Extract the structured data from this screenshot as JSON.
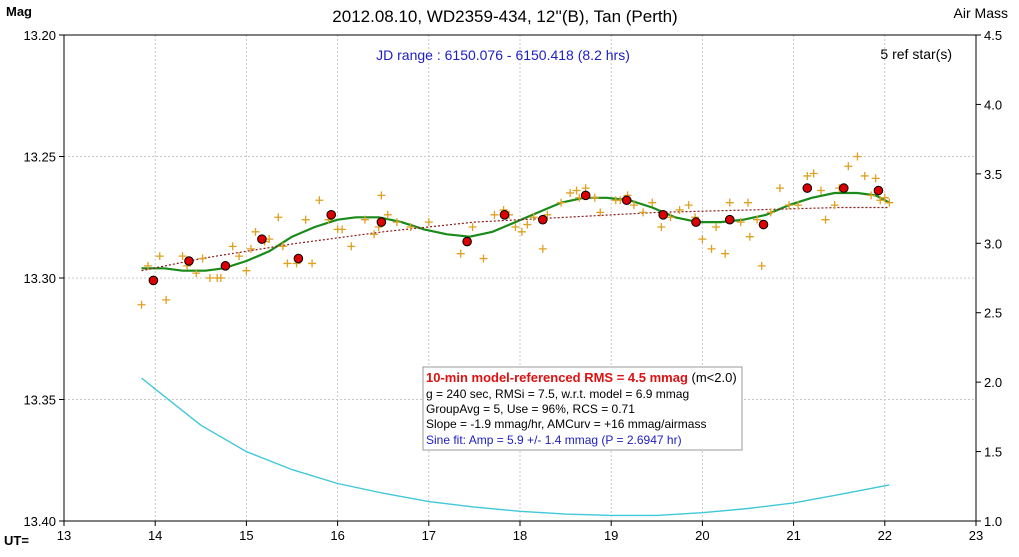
{
  "chart_data": {
    "type": "scatter",
    "title": "2012.08.10, WD2359-434, 12''(B), Tan (Perth)",
    "ylabel": "Mag",
    "y2label": "Air Mass",
    "xlabel": "UT=",
    "xlim": [
      13,
      23
    ],
    "ylim": [
      13.2,
      13.4
    ],
    "y_inverted": true,
    "y2lim": [
      1.0,
      4.5
    ],
    "x_ticks": [
      "13",
      "14",
      "15",
      "16",
      "17",
      "18",
      "19",
      "20",
      "21",
      "22",
      "23"
    ],
    "y_ticks": [
      "13.20",
      "13.25",
      "13.30",
      "13.35",
      "13.40"
    ],
    "y2_ticks": [
      "1.0",
      "1.5",
      "2.0",
      "2.5",
      "3.0",
      "3.5",
      "4.0",
      "4.5"
    ],
    "grid": true,
    "jd_range_label": "JD range : 6150.076 - 6150.418 (8.2 hrs)",
    "ref_stars_label": "5 ref star(s)",
    "stats_box": {
      "line1_red": "10-min model-referenced RMS = 4.5 mmag",
      "line1_tail": " (m<2.0)",
      "line2": "g = 240 sec, RMSi = 7.5, w.r.t. model = 6.9 mmag",
      "line3": "GroupAvg  = 5, Use = 96%, RCS = 0.71",
      "line4": "Slope = -1.9  mmag/hr,  AMCurv  = +16 mmag/airmass",
      "line5_blue": "Sine fit: Amp = 5.9 +/- 1.4 mmag (P = 2.6947  hr)"
    },
    "series": [
      {
        "kind": "individual",
        "marker": "plus",
        "color": "#E0A020",
        "points": [
          [
            13.85,
            13.311
          ],
          [
            13.92,
            13.295
          ],
          [
            14.05,
            13.291
          ],
          [
            14.12,
            13.309
          ],
          [
            14.3,
            13.291
          ],
          [
            14.35,
            13.295
          ],
          [
            14.45,
            13.298
          ],
          [
            14.52,
            13.292
          ],
          [
            14.6,
            13.3
          ],
          [
            14.68,
            13.3
          ],
          [
            14.72,
            13.3
          ],
          [
            14.78,
            13.295
          ],
          [
            14.85,
            13.287
          ],
          [
            14.92,
            13.291
          ],
          [
            15.0,
            13.297
          ],
          [
            15.05,
            13.288
          ],
          [
            15.1,
            13.281
          ],
          [
            15.2,
            13.285
          ],
          [
            15.25,
            13.284
          ],
          [
            15.35,
            13.275
          ],
          [
            15.4,
            13.287
          ],
          [
            15.45,
            13.294
          ],
          [
            15.55,
            13.294
          ],
          [
            15.65,
            13.276
          ],
          [
            15.72,
            13.294
          ],
          [
            15.8,
            13.268
          ],
          [
            15.9,
            13.276
          ],
          [
            16.0,
            13.28
          ],
          [
            16.05,
            13.28
          ],
          [
            16.15,
            13.287
          ],
          [
            16.3,
            13.276
          ],
          [
            16.4,
            13.282
          ],
          [
            16.45,
            13.279
          ],
          [
            16.48,
            13.266
          ],
          [
            16.55,
            13.274
          ],
          [
            16.65,
            13.277
          ],
          [
            16.8,
            13.279
          ],
          [
            17.0,
            13.277
          ],
          [
            17.35,
            13.29
          ],
          [
            17.48,
            13.279
          ],
          [
            17.6,
            13.292
          ],
          [
            17.72,
            13.274
          ],
          [
            17.82,
            13.272
          ],
          [
            17.88,
            13.274
          ],
          [
            17.95,
            13.279
          ],
          [
            18.02,
            13.281
          ],
          [
            18.08,
            13.278
          ],
          [
            18.15,
            13.275
          ],
          [
            18.25,
            13.288
          ],
          [
            18.3,
            13.274
          ],
          [
            18.45,
            13.269
          ],
          [
            18.55,
            13.265
          ],
          [
            18.62,
            13.264
          ],
          [
            18.65,
            13.267
          ],
          [
            18.72,
            13.263
          ],
          [
            18.82,
            13.267
          ],
          [
            18.88,
            13.273
          ],
          [
            19.05,
            13.268
          ],
          [
            19.1,
            13.268
          ],
          [
            19.18,
            13.266
          ],
          [
            19.25,
            13.27
          ],
          [
            19.35,
            13.273
          ],
          [
            19.45,
            13.269
          ],
          [
            19.55,
            13.279
          ],
          [
            19.65,
            13.275
          ],
          [
            19.75,
            13.272
          ],
          [
            19.85,
            13.27
          ],
          [
            19.92,
            13.275
          ],
          [
            20.0,
            13.284
          ],
          [
            20.1,
            13.288
          ],
          [
            20.15,
            13.279
          ],
          [
            20.25,
            13.29
          ],
          [
            20.3,
            13.269
          ],
          [
            20.42,
            13.277
          ],
          [
            20.5,
            13.269
          ],
          [
            20.52,
            13.283
          ],
          [
            20.6,
            13.276
          ],
          [
            20.65,
            13.295
          ],
          [
            20.75,
            13.273
          ],
          [
            20.85,
            13.263
          ],
          [
            20.95,
            13.27
          ],
          [
            21.05,
            13.27
          ],
          [
            21.15,
            13.258
          ],
          [
            21.22,
            13.257
          ],
          [
            21.3,
            13.264
          ],
          [
            21.35,
            13.276
          ],
          [
            21.45,
            13.27
          ],
          [
            21.5,
            13.263
          ],
          [
            21.6,
            13.254
          ],
          [
            21.7,
            13.25
          ],
          [
            21.78,
            13.258
          ],
          [
            21.85,
            13.266
          ],
          [
            21.9,
            13.259
          ],
          [
            21.95,
            13.268
          ],
          [
            22.0,
            13.267
          ],
          [
            22.05,
            13.269
          ]
        ]
      },
      {
        "kind": "group_average",
        "marker": "circle",
        "color": "#DD0000",
        "points": [
          [
            13.98,
            13.301
          ],
          [
            14.37,
            13.293
          ],
          [
            14.77,
            13.295
          ],
          [
            15.17,
            13.284
          ],
          [
            15.57,
            13.292
          ],
          [
            15.93,
            13.274
          ],
          [
            16.48,
            13.277
          ],
          [
            17.42,
            13.285
          ],
          [
            17.83,
            13.274
          ],
          [
            18.25,
            13.276
          ],
          [
            18.72,
            13.266
          ],
          [
            19.17,
            13.268
          ],
          [
            19.57,
            13.274
          ],
          [
            19.93,
            13.277
          ],
          [
            20.3,
            13.276
          ],
          [
            20.67,
            13.278
          ],
          [
            21.15,
            13.263
          ],
          [
            21.55,
            13.263
          ],
          [
            21.93,
            13.264
          ]
        ]
      },
      {
        "kind": "model_fit",
        "style": "line",
        "color": "#1A8A1A",
        "points": [
          [
            13.85,
            13.296
          ],
          [
            14.1,
            13.296
          ],
          [
            14.3,
            13.297
          ],
          [
            14.55,
            13.297
          ],
          [
            14.75,
            13.296
          ],
          [
            15.0,
            13.293
          ],
          [
            15.25,
            13.289
          ],
          [
            15.5,
            13.283
          ],
          [
            15.75,
            13.279
          ],
          [
            16.0,
            13.276
          ],
          [
            16.2,
            13.275
          ],
          [
            16.45,
            13.275
          ],
          [
            16.7,
            13.277
          ],
          [
            16.95,
            13.28
          ],
          [
            17.2,
            13.282
          ],
          [
            17.45,
            13.283
          ],
          [
            17.7,
            13.281
          ],
          [
            17.95,
            13.277
          ],
          [
            18.2,
            13.273
          ],
          [
            18.45,
            13.269
          ],
          [
            18.7,
            13.267
          ],
          [
            18.95,
            13.267
          ],
          [
            19.2,
            13.268
          ],
          [
            19.45,
            13.271
          ],
          [
            19.7,
            13.275
          ],
          [
            19.95,
            13.277
          ],
          [
            20.2,
            13.277
          ],
          [
            20.45,
            13.276
          ],
          [
            20.7,
            13.274
          ],
          [
            20.95,
            13.27
          ],
          [
            21.2,
            13.267
          ],
          [
            21.45,
            13.265
          ],
          [
            21.7,
            13.265
          ],
          [
            21.9,
            13.266
          ],
          [
            22.05,
            13.269
          ]
        ]
      },
      {
        "kind": "trend",
        "style": "dotted",
        "color": "#8B1A1A",
        "points": [
          [
            13.85,
            13.297
          ],
          [
            14.5,
            13.292
          ],
          [
            15.5,
            13.286
          ],
          [
            16.5,
            13.281
          ],
          [
            17.5,
            13.277
          ],
          [
            18.5,
            13.275
          ],
          [
            19.5,
            13.273
          ],
          [
            20.5,
            13.272
          ],
          [
            21.5,
            13.271
          ],
          [
            22.05,
            13.271
          ]
        ]
      },
      {
        "kind": "airmass",
        "style": "line",
        "axis": "y2",
        "color": "#40C8D8",
        "points": [
          [
            13.85,
            2.03
          ],
          [
            14.0,
            1.95
          ],
          [
            14.5,
            1.69
          ],
          [
            15.0,
            1.5
          ],
          [
            15.5,
            1.37
          ],
          [
            16.0,
            1.27
          ],
          [
            16.5,
            1.2
          ],
          [
            17.0,
            1.14
          ],
          [
            17.5,
            1.1
          ],
          [
            18.0,
            1.07
          ],
          [
            18.5,
            1.05
          ],
          [
            19.0,
            1.04
          ],
          [
            19.5,
            1.04
          ],
          [
            20.0,
            1.06
          ],
          [
            20.5,
            1.09
          ],
          [
            21.0,
            1.13
          ],
          [
            21.5,
            1.19
          ],
          [
            22.05,
            1.26
          ]
        ]
      }
    ]
  }
}
